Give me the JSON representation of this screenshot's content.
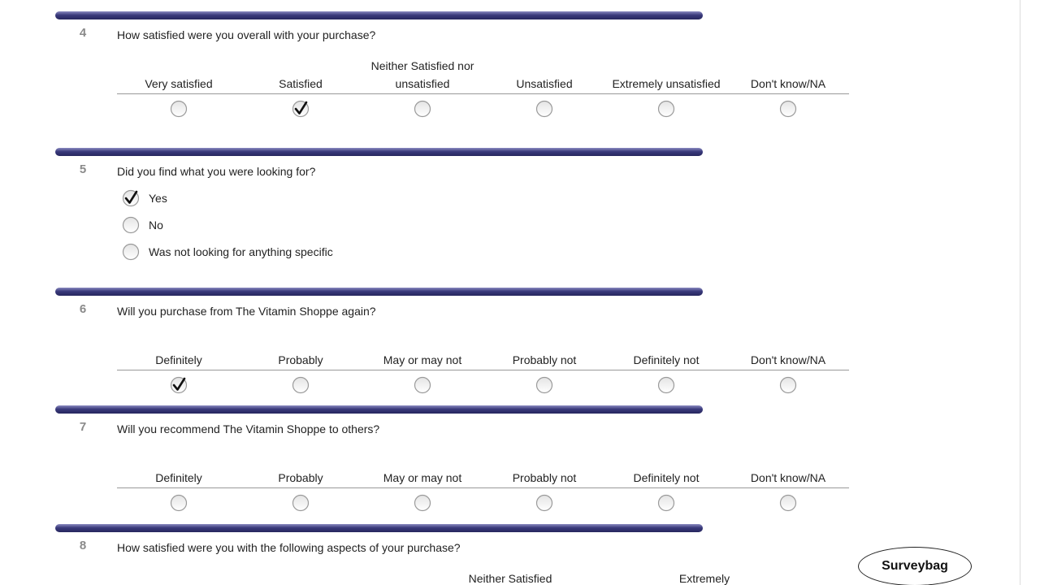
{
  "questions": [
    {
      "number": "4",
      "text": "How satisfied were you overall with your purchase?",
      "layout": "scale",
      "options": [
        "Very satisfied",
        "Satisfied",
        "Neither Satisfied nor unsatisfied",
        "Unsatisfied",
        "Extremely unsatisfied",
        "Don't know/NA"
      ],
      "selected": 1
    },
    {
      "number": "5",
      "text": "Did you find what you were looking for?",
      "layout": "list",
      "options": [
        "Yes",
        "No",
        "Was not looking for anything specific"
      ],
      "selected": 0
    },
    {
      "number": "6",
      "text": "Will you purchase from The Vitamin Shoppe again?",
      "layout": "scale",
      "options": [
        "Definitely",
        "Probably",
        "May or may not",
        "Probably not",
        "Definitely not",
        "Don't know/NA"
      ],
      "selected": 0
    },
    {
      "number": "7",
      "text": "Will you recommend The Vitamin Shoppe to others?",
      "layout": "scale",
      "options": [
        "Definitely",
        "Probably",
        "May or may not",
        "Probably not",
        "Definitely not",
        "Don't know/NA"
      ],
      "selected": null
    }
  ],
  "partial_question": {
    "number": "8",
    "text": "How satisfied were you with the following aspects of your purchase?",
    "headers": [
      "Neither Satisfied",
      "Extremely"
    ]
  },
  "badge": "Surveybag"
}
